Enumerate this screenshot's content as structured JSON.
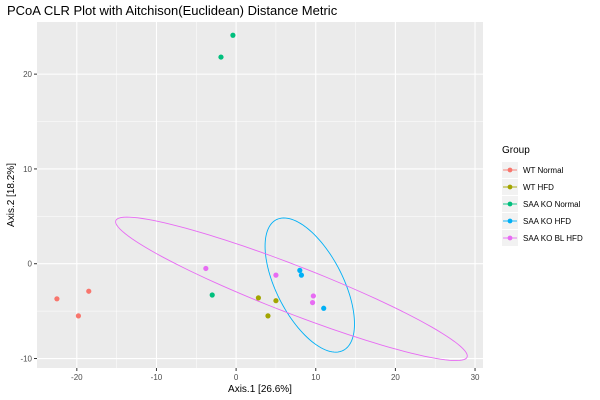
{
  "chart_data": {
    "type": "scatter",
    "title": "PCoA CLR Plot with Aitchison(Euclidean) Distance Metric",
    "xlabel": "Axis.1   [26.6%]",
    "ylabel": "Axis.2   [18.2%]",
    "xlim": [
      -25,
      31
    ],
    "ylim": [
      -11,
      25.5
    ],
    "x_ticks": [
      -20,
      -10,
      0,
      10,
      20,
      30
    ],
    "x_tick_labels": [
      "-20",
      "-10",
      "0",
      "10",
      "20",
      "30"
    ],
    "y_ticks": [
      -10,
      0,
      10,
      20
    ],
    "y_tick_labels": [
      "-10",
      "0",
      "10",
      "20"
    ],
    "grid": true,
    "legend": {
      "title": "Group",
      "position": "right"
    },
    "series": [
      {
        "name": "WT Normal",
        "color": "#F8766D",
        "points": [
          [
            -22.5,
            -3.7
          ],
          [
            -19.8,
            -5.5
          ],
          [
            -18.5,
            -2.9
          ]
        ]
      },
      {
        "name": "WT HFD",
        "color": "#A3A500",
        "points": [
          [
            2.8,
            -3.6
          ],
          [
            4.0,
            -5.5
          ],
          [
            5.0,
            -3.9
          ]
        ]
      },
      {
        "name": "SAA KO Normal",
        "color": "#00BF7D",
        "points": [
          [
            -0.4,
            24.1
          ],
          [
            -1.9,
            21.8
          ],
          [
            -3.0,
            -3.3
          ]
        ]
      },
      {
        "name": "SAA KO HFD",
        "color": "#00B0F6",
        "points": [
          [
            8.0,
            -0.7
          ],
          [
            8.2,
            -1.2
          ],
          [
            11.0,
            -4.7
          ]
        ]
      },
      {
        "name": "SAA KO BL HFD",
        "color": "#E76BF3",
        "points": [
          [
            -3.8,
            -0.5
          ],
          [
            5.0,
            -1.2
          ],
          [
            9.7,
            -3.4
          ],
          [
            9.6,
            -4.1
          ]
        ]
      }
    ],
    "ellipses": [
      {
        "series": "SAA KO HFD",
        "color": "#00B0F6",
        "center": [
          9.25,
          -2.25
        ],
        "semi_major": 8.1,
        "semi_minor": 4.0,
        "angle_deg": -56
      },
      {
        "series": "SAA KO BL HFD",
        "color": "#E76BF3",
        "center": [
          6.95,
          -2.65
        ],
        "semi_major": 23.2,
        "semi_minor": 2.55,
        "angle_deg": -18
      }
    ]
  }
}
